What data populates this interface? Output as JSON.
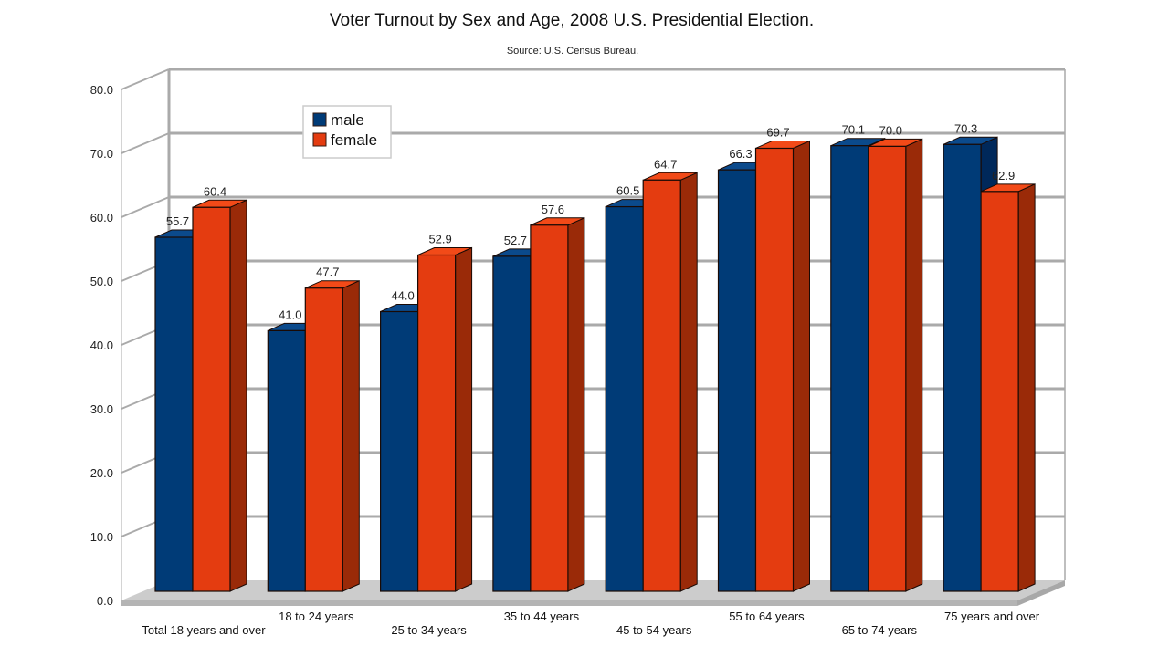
{
  "chart_data": {
    "type": "bar",
    "style": "3d-clustered",
    "title": "Voter Turnout by Sex and Age, 2008 U.S. Presidential Election.",
    "subtitle": "Source: U.S. Census Bureau.",
    "xlabel": "",
    "ylabel": "",
    "ylim": [
      0,
      80
    ],
    "yticks": [
      "0.0",
      "10.0",
      "20.0",
      "30.0",
      "40.0",
      "50.0",
      "60.0",
      "70.0",
      "80.0"
    ],
    "grid": true,
    "legend_position": "top-left",
    "categories": [
      "Total 18 years and over",
      "18 to 24 years",
      "25 to 34 years",
      "35 to 44 years",
      "45 to 54 years",
      "55 to 64 years",
      "65 to 74 years",
      "75 years and over"
    ],
    "series": [
      {
        "name": "male",
        "color": "#003b77",
        "side": "#00285a",
        "top": "#0b4a8c",
        "values": [
          55.7,
          41.0,
          44.0,
          52.7,
          60.5,
          66.3,
          70.1,
          70.3
        ],
        "labels": [
          "55.7",
          "41.0",
          "44.0",
          "52.7",
          "60.5",
          "66.3",
          "70.1",
          "70.3"
        ]
      },
      {
        "name": "female",
        "color": "#e43c10",
        "side": "#9a2a08",
        "top": "#f24a18",
        "values": [
          60.4,
          47.7,
          52.9,
          57.6,
          64.7,
          69.7,
          70.0,
          62.9
        ],
        "labels": [
          "60.4",
          "47.7",
          "52.9",
          "57.6",
          "64.7",
          "69.7",
          "70.0",
          "62.9"
        ]
      }
    ]
  }
}
